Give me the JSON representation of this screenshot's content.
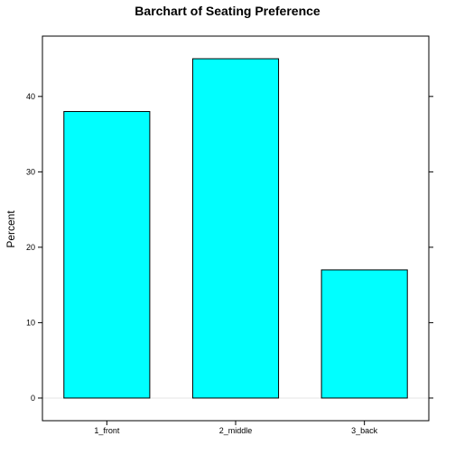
{
  "chart_data": {
    "type": "bar",
    "title": "Barchart of Seating Preference",
    "xlabel": "",
    "ylabel": "Percent",
    "categories": [
      "1_front",
      "2_middle",
      "3_back"
    ],
    "values": [
      38,
      45,
      17
    ],
    "ylim": [
      -3,
      48
    ],
    "yticks": [
      0,
      10,
      20,
      30,
      40
    ],
    "grid": false,
    "legend": "none",
    "bar_color": "#00ffff",
    "border_color": "#000000"
  }
}
